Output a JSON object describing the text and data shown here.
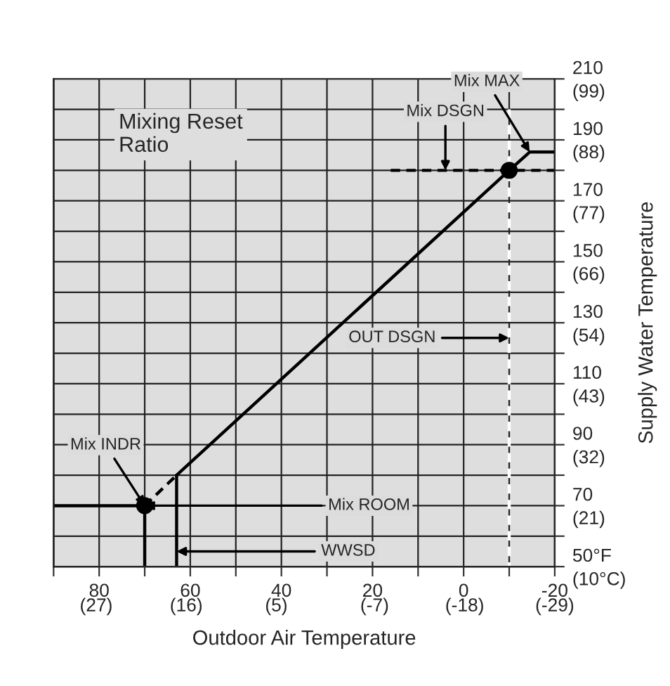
{
  "chart_data": {
    "type": "line",
    "xlabel": "Outdoor Air Temperature",
    "y2label": "Supply Water Temperature",
    "xlim": [
      90,
      -20
    ],
    "ylim": [
      50,
      210
    ],
    "xticks": [
      {
        "value": 90,
        "label": null
      },
      80,
      {
        "value": 70,
        "label": null
      },
      60,
      {
        "value": 50,
        "label": null
      },
      40,
      {
        "value": 30,
        "label": null
      },
      20,
      {
        "value": 10,
        "label": null
      },
      0,
      {
        "value": -10,
        "label": null
      },
      -20
    ],
    "x2lim": [
      32.2,
      -29
    ],
    "x2ticks": [
      {
        "value": 27,
        "label": "(27)"
      },
      {
        "value": 16,
        "label": "(16)"
      },
      {
        "value": 5,
        "label": "(5)"
      },
      {
        "value": -7,
        "label": "(-7)"
      },
      {
        "value": -18,
        "label": "(-18)"
      },
      {
        "value": -29,
        "label": "(-29)"
      }
    ],
    "yticks": [
      {
        "value": 50,
        "label": "50°F"
      },
      {
        "value": 60,
        "label": null
      },
      70,
      {
        "value": 80,
        "label": null
      },
      90,
      {
        "value": 100,
        "label": null
      },
      110,
      {
        "value": 120,
        "label": null
      },
      130,
      {
        "value": 140,
        "label": null
      },
      150,
      {
        "value": 160,
        "label": null
      },
      170,
      {
        "value": 180,
        "label": null
      },
      190,
      {
        "value": 200,
        "label": null
      },
      210
    ],
    "y2lim": [
      10,
      98.9
    ],
    "y2ticks": [
      {
        "value": 10,
        "label": "(10°C)"
      },
      {
        "value": 21.1,
        "label": "(21)"
      },
      {
        "value": 32.2,
        "label": "(32)"
      },
      {
        "value": 43.3,
        "label": "(43)"
      },
      {
        "value": 54.4,
        "label": "(54)"
      },
      {
        "value": 65.6,
        "label": "(66)"
      },
      {
        "value": 76.7,
        "label": "(77)"
      },
      {
        "value": 87.8,
        "label": "(88)"
      },
      {
        "value": 98.9,
        "label": "(99)"
      }
    ],
    "grid": true,
    "legend": false,
    "series": [
      {
        "color": "#000000",
        "line_style": "solid",
        "marker": "none",
        "x": [
          63,
          -10,
          -14.5,
          -20
        ],
        "values": [
          80,
          180,
          186,
          186
        ]
      },
      {
        "color": "#000000",
        "line_style": "dashed",
        "marker": "none",
        "x": [
          70,
          63
        ],
        "values": [
          70,
          80
        ]
      },
      {
        "color": "#000000",
        "line_style": "solid",
        "marker": "none",
        "x": [
          90,
          70
        ],
        "values": [
          70,
          70
        ]
      },
      {
        "color": "#000000",
        "line_style": "solid",
        "marker": "none",
        "x": [
          70,
          70
        ],
        "values": [
          70,
          50
        ]
      },
      {
        "color": "#000000",
        "line_style": "solid",
        "marker": "none",
        "x": [
          63,
          63
        ],
        "values": [
          50,
          80
        ]
      },
      {
        "color": "#000000",
        "line_style": "dashed",
        "marker": "none",
        "x": [
          16,
          -20
        ],
        "values": [
          180,
          180
        ]
      },
      {
        "color": "#ffffff",
        "line_style": "dashed",
        "marker": "none",
        "x": [
          -10,
          -10
        ],
        "values": [
          200,
          50
        ]
      },
      {
        "type": "scatter",
        "color": "#000000",
        "marker": "circle",
        "x": [
          70,
          -10
        ],
        "values": [
          70,
          180
        ]
      }
    ],
    "annotations": [
      "Mixing Reset\nRatio",
      {
        "text": "Mix MAX",
        "x": -14.5,
        "y": 186
      },
      {
        "text": "Mix DSGN",
        "x": 4,
        "y": 180
      },
      "OUT DSGN",
      {
        "text": "Mix INDR",
        "x": 70,
        "y": 70
      },
      {
        "text": "Mix ROOM",
        "x": 70,
        "y": 70
      },
      {
        "text": "WWSD",
        "x": 63,
        "y": 55
      }
    ]
  }
}
